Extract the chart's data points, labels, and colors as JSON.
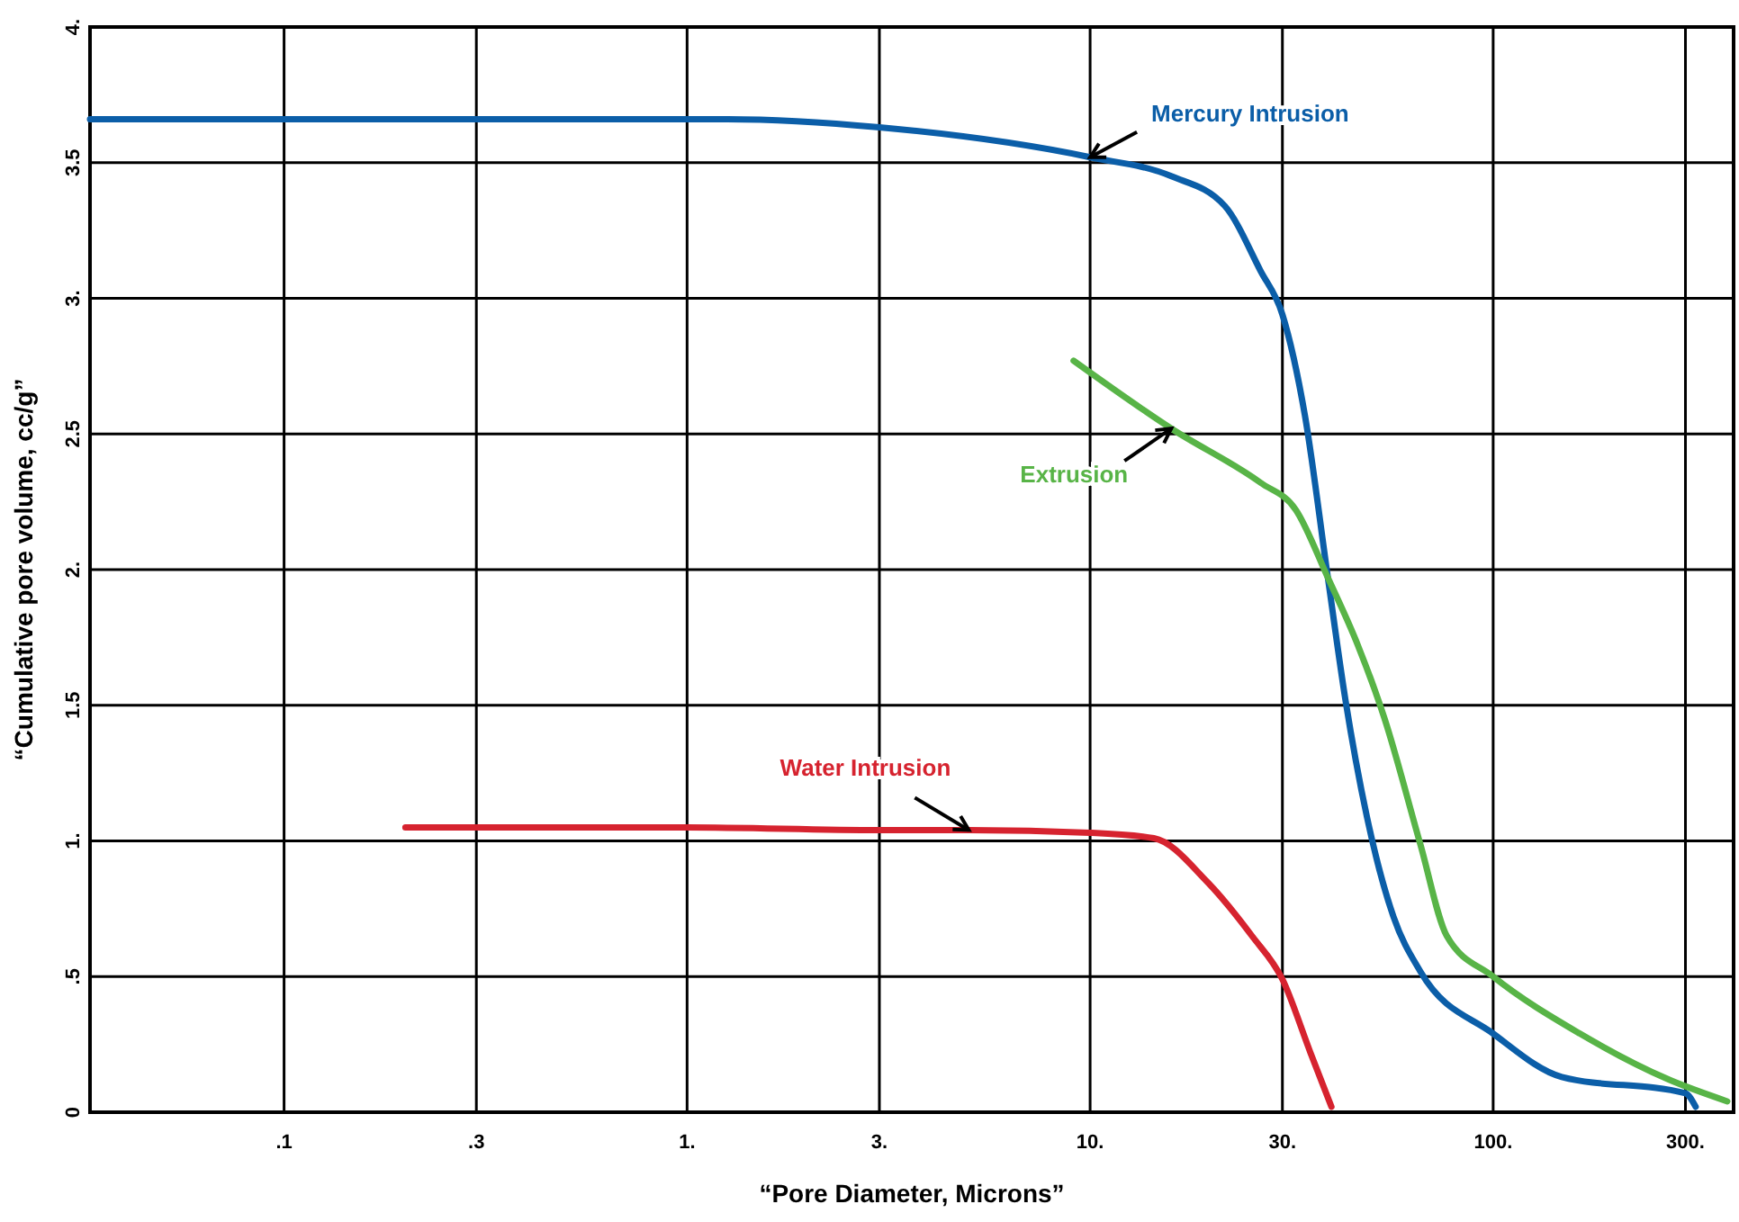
{
  "chart_data": {
    "type": "line",
    "xlabel": "“Pore Diameter, Microns”",
    "ylabel": "“Cumulative pore volume, cc/g”",
    "log": "x",
    "grid": true,
    "legend": false,
    "marker": "none",
    "line_style": "solid",
    "xlim": [
      0.033,
      395
    ],
    "ylim": [
      0,
      4
    ],
    "xticks": [
      {
        "value": 0.1,
        "label": ".1"
      },
      {
        "value": 0.3,
        "label": ".3"
      },
      {
        "value": 1,
        "label": "1."
      },
      {
        "value": 3,
        "label": "3."
      },
      {
        "value": 10,
        "label": "10."
      },
      {
        "value": 30,
        "label": "30."
      },
      {
        "value": 100,
        "label": "100."
      },
      {
        "value": 300,
        "label": "300."
      }
    ],
    "yticks": [
      0,
      {
        "value": 0.5,
        "label": ".5"
      },
      {
        "value": 1,
        "label": "1."
      },
      {
        "value": 1.5,
        "label": "1.5"
      },
      {
        "value": 2,
        "label": "2."
      },
      {
        "value": 2.5,
        "label": "2.5"
      },
      {
        "value": 3,
        "label": "3."
      },
      {
        "value": 3.5,
        "label": "3.5"
      },
      {
        "value": 4,
        "label": "4."
      }
    ],
    "series": [
      {
        "name": "Mercury Intrusion",
        "color": "#0b5ea8",
        "x": [
          0.033,
          1.26,
          3,
          10,
          15.9,
          21.6,
          26.5,
          30,
          34.1,
          38.9,
          43,
          48.6,
          56.6,
          65.9,
          100,
          148,
          300,
          318
        ],
        "values": [
          3.66,
          3.66,
          3.63,
          3.52,
          3.45,
          3.34,
          3.1,
          2.94,
          2.57,
          1.97,
          1.52,
          1.09,
          0.72,
          0.52,
          0.29,
          0.13,
          0.07,
          0.02
        ]
      },
      {
        "name": "Extrusion",
        "color": "#58b447",
        "x": [
          9.1,
          15.9,
          26.5,
          32.4,
          38.9,
          46.2,
          53.8,
          65.9,
          76.7,
          100,
          164,
          273,
          381
        ],
        "values": [
          2.77,
          2.52,
          2.32,
          2.22,
          1.97,
          1.72,
          1.45,
          0.99,
          0.65,
          0.5,
          0.29,
          0.12,
          0.04
        ]
      },
      {
        "name": "Water Intrusion",
        "color": "#d6232f",
        "x": [
          0.2,
          0.3,
          1,
          3,
          5,
          10,
          14.4,
          19.5,
          25.2,
          30,
          35.2,
          39.7
        ],
        "values": [
          1.05,
          1.05,
          1.05,
          1.04,
          1.04,
          1.03,
          1.01,
          0.85,
          0.65,
          0.49,
          0.22,
          0.02
        ]
      }
    ]
  }
}
